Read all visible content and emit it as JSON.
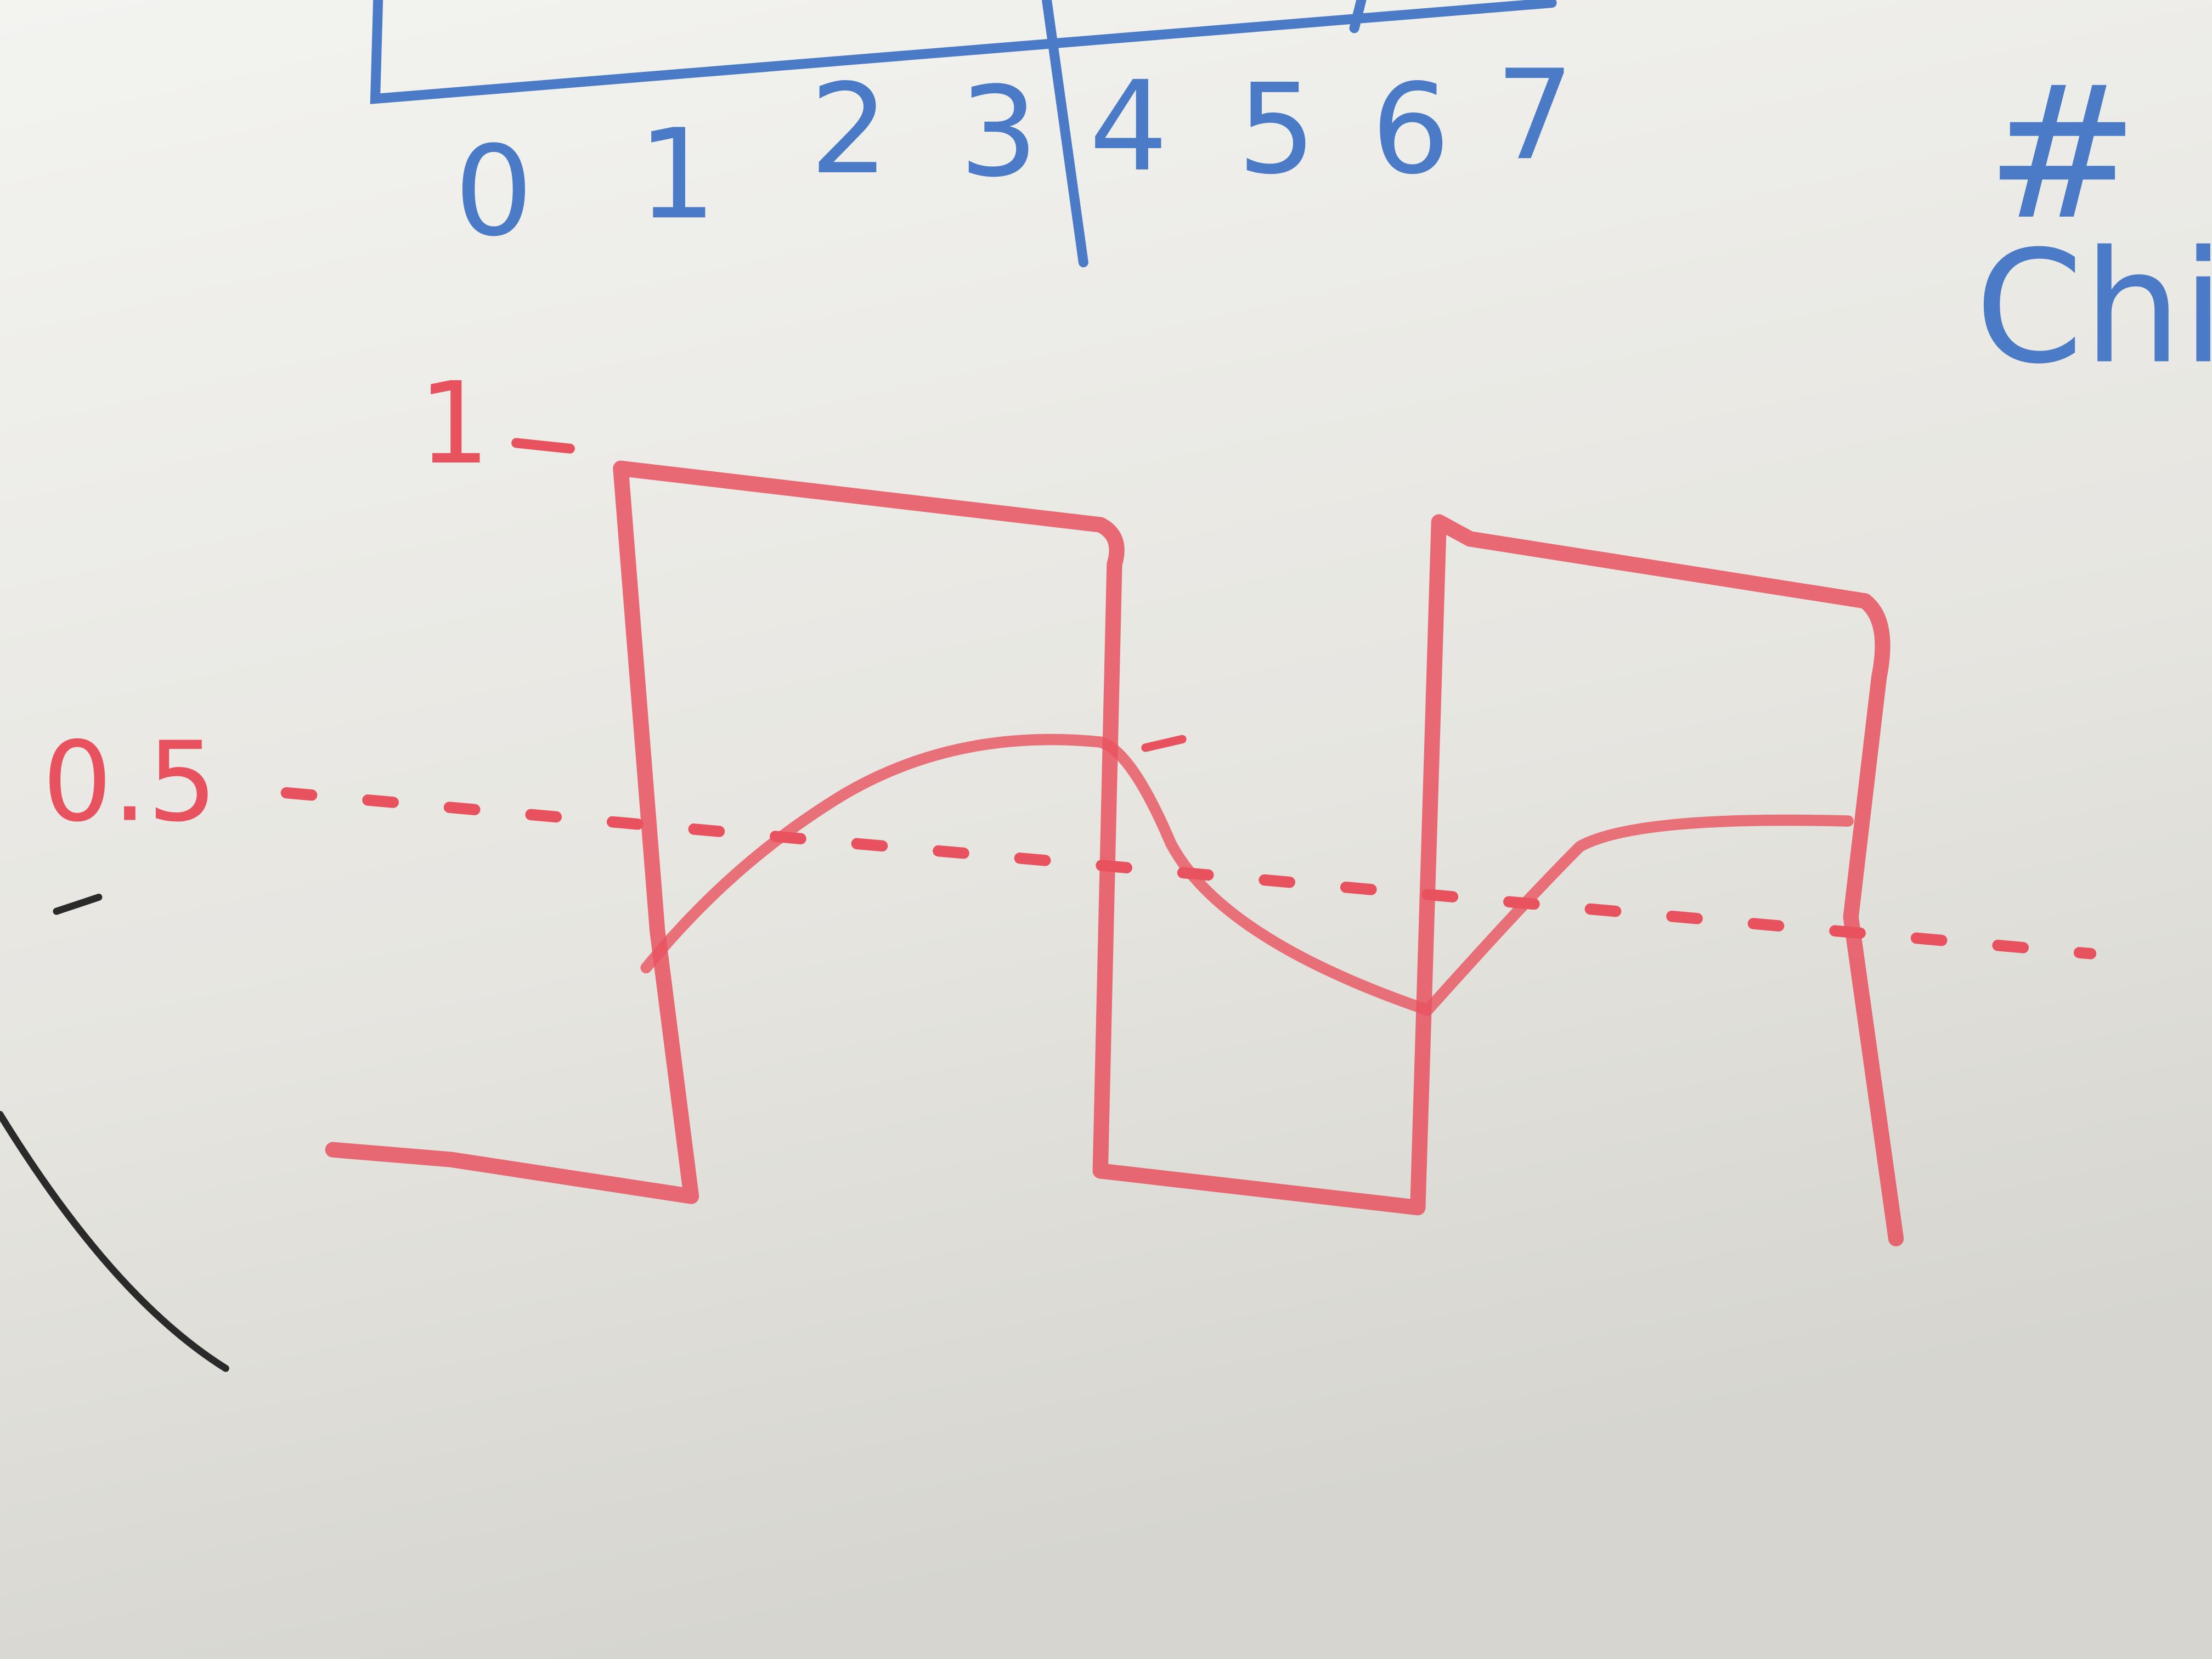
{
  "top_axis": {
    "labels": [
      "0",
      "1",
      "2",
      "3",
      "4",
      "5",
      "6",
      "7"
    ]
  },
  "side_note": {
    "symbol": "#",
    "text": "Chi"
  },
  "graph": {
    "y_labels": [
      "1",
      "0.5"
    ]
  }
}
